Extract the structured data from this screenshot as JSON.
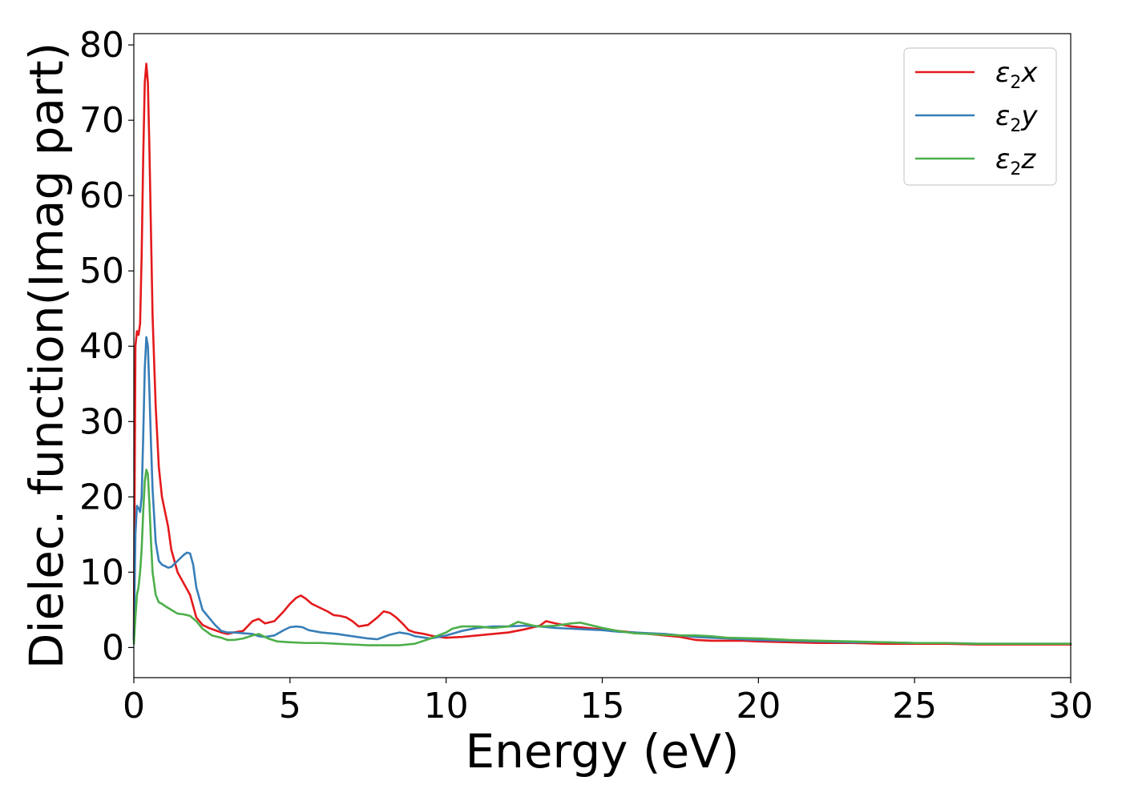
{
  "chart_data": {
    "type": "line",
    "title": "",
    "xlabel": "Energy (eV)",
    "ylabel": "Dielec. function(Imag part)",
    "xlim": [
      0,
      30
    ],
    "ylim": [
      -4,
      81.5
    ],
    "xticks": [
      0,
      5,
      10,
      15,
      20,
      25,
      30
    ],
    "yticks": [
      0,
      10,
      20,
      30,
      40,
      50,
      60,
      70,
      80
    ],
    "grid": false,
    "legend_position": "top-right",
    "series": [
      {
        "name": "ε2x",
        "legend_base": "ε",
        "legend_sub": "2",
        "legend_tail": "x",
        "color": "#e41a1c",
        "x": [
          0,
          0.05,
          0.1,
          0.15,
          0.2,
          0.25,
          0.3,
          0.35,
          0.4,
          0.45,
          0.5,
          0.55,
          0.6,
          0.7,
          0.8,
          0.9,
          1.0,
          1.1,
          1.2,
          1.4,
          1.6,
          1.8,
          2.0,
          2.2,
          2.4,
          2.6,
          2.8,
          3.0,
          3.2,
          3.5,
          3.8,
          4.0,
          4.2,
          4.5,
          4.8,
          5.0,
          5.2,
          5.35,
          5.5,
          5.7,
          6.0,
          6.2,
          6.4,
          6.6,
          6.8,
          7.0,
          7.2,
          7.5,
          7.8,
          8.0,
          8.2,
          8.4,
          8.6,
          8.8,
          9.0,
          9.3,
          9.6,
          10.0,
          10.5,
          11.0,
          11.5,
          12.0,
          12.5,
          13.0,
          13.2,
          13.5,
          14.0,
          14.5,
          15.0,
          15.5,
          16.0,
          16.5,
          17.0,
          17.5,
          18.0,
          18.5,
          19.0,
          19.5,
          20.0,
          21.0,
          22.0,
          23.0,
          24.0,
          25.0,
          26.0,
          27.0,
          28.0,
          29.0,
          30.0
        ],
        "y": [
          1,
          40,
          42,
          41.5,
          43,
          52,
          65,
          75,
          77.5,
          75,
          66,
          55,
          44,
          32,
          24,
          20,
          18,
          16,
          13,
          10,
          8.5,
          7,
          4,
          3,
          2.6,
          2.3,
          2,
          1.8,
          2,
          2.2,
          3.5,
          3.8,
          3.2,
          3.5,
          4.8,
          5.8,
          6.6,
          6.9,
          6.5,
          5.8,
          5.2,
          4.8,
          4.3,
          4.2,
          4.0,
          3.5,
          2.8,
          3.0,
          4.0,
          4.8,
          4.6,
          4.0,
          3.2,
          2.3,
          2.0,
          1.8,
          1.5,
          1.3,
          1.4,
          1.6,
          1.8,
          2.0,
          2.4,
          2.9,
          3.5,
          3.2,
          2.8,
          2.6,
          2.4,
          2.2,
          2.0,
          1.8,
          1.6,
          1.4,
          1.0,
          0.9,
          0.9,
          0.9,
          0.8,
          0.7,
          0.6,
          0.6,
          0.5,
          0.5,
          0.5,
          0.4,
          0.4,
          0.4,
          0.4
        ]
      },
      {
        "name": "ε2y",
        "legend_base": "ε",
        "legend_sub": "2",
        "legend_tail": "y",
        "color": "#377eb8",
        "x": [
          0,
          0.05,
          0.1,
          0.15,
          0.2,
          0.25,
          0.3,
          0.35,
          0.4,
          0.45,
          0.5,
          0.55,
          0.6,
          0.7,
          0.8,
          0.9,
          1.0,
          1.1,
          1.2,
          1.4,
          1.6,
          1.7,
          1.8,
          1.9,
          2.0,
          2.2,
          2.4,
          2.6,
          2.8,
          3.0,
          3.2,
          3.5,
          3.8,
          4.0,
          4.2,
          4.5,
          4.8,
          5.0,
          5.2,
          5.4,
          5.6,
          6.0,
          6.5,
          7.0,
          7.5,
          7.8,
          8.0,
          8.2,
          8.5,
          8.8,
          9.0,
          9.5,
          10.0,
          10.5,
          11.0,
          11.5,
          12.0,
          12.5,
          13.0,
          13.5,
          14.0,
          14.5,
          15.0,
          15.5,
          16.0,
          16.5,
          17.0,
          17.5,
          18.0,
          19.0,
          20.0,
          21.0,
          22.0,
          23.0,
          24.0,
          25.0,
          26.0,
          27.0,
          28.0,
          29.0,
          30.0
        ],
        "y": [
          1,
          15,
          18.8,
          18.5,
          18,
          20,
          28,
          37,
          41.2,
          40,
          34,
          27,
          21,
          14,
          11.5,
          11,
          10.8,
          10.6,
          10.7,
          11.5,
          12.3,
          12.6,
          12.5,
          11,
          8,
          5,
          4,
          3,
          2.2,
          2,
          2,
          1.9,
          1.8,
          1.5,
          1.4,
          1.6,
          2.3,
          2.7,
          2.8,
          2.7,
          2.3,
          2.0,
          1.8,
          1.5,
          1.2,
          1.1,
          1.4,
          1.7,
          2.0,
          1.8,
          1.5,
          1.2,
          1.6,
          2.2,
          2.6,
          2.8,
          2.8,
          2.9,
          2.8,
          2.6,
          2.5,
          2.4,
          2.3,
          2.1,
          2.0,
          1.9,
          1.8,
          1.6,
          1.4,
          1.2,
          1.0,
          0.9,
          0.8,
          0.7,
          0.7,
          0.6,
          0.6,
          0.5,
          0.5,
          0.5,
          0.5
        ]
      },
      {
        "name": "ε2z",
        "legend_base": "ε",
        "legend_sub": "2",
        "legend_tail": "z",
        "color": "#4daf4a",
        "x": [
          0,
          0.05,
          0.1,
          0.15,
          0.2,
          0.25,
          0.3,
          0.35,
          0.4,
          0.45,
          0.5,
          0.55,
          0.6,
          0.7,
          0.8,
          0.9,
          1.0,
          1.2,
          1.4,
          1.6,
          1.8,
          2.0,
          2.2,
          2.5,
          2.8,
          3.0,
          3.2,
          3.5,
          3.8,
          4.0,
          4.3,
          4.6,
          5.0,
          5.5,
          6.0,
          6.5,
          7.0,
          7.5,
          8.0,
          8.5,
          9.0,
          9.5,
          10.0,
          10.2,
          10.5,
          11.0,
          11.5,
          12.0,
          12.3,
          12.5,
          12.8,
          13.0,
          13.5,
          14.0,
          14.3,
          14.6,
          15.0,
          15.5,
          16.0,
          16.5,
          17.0,
          17.5,
          18.0,
          18.5,
          19.0,
          20.0,
          21.0,
          22.0,
          23.0,
          24.0,
          25.0,
          26.0,
          27.0,
          28.0,
          29.0,
          30.0
        ],
        "y": [
          0.5,
          4,
          7,
          8,
          10,
          13,
          18,
          22,
          23.6,
          23,
          19,
          14,
          10,
          7,
          6,
          5.8,
          5.5,
          5,
          4.5,
          4.4,
          4.2,
          3.5,
          2.5,
          1.6,
          1.3,
          1.0,
          1.0,
          1.2,
          1.6,
          1.8,
          1.2,
          0.8,
          0.7,
          0.6,
          0.6,
          0.5,
          0.4,
          0.3,
          0.3,
          0.3,
          0.5,
          1.2,
          2.0,
          2.5,
          2.8,
          2.8,
          2.6,
          2.8,
          3.4,
          3.2,
          2.9,
          2.8,
          2.9,
          3.2,
          3.3,
          3.0,
          2.6,
          2.2,
          1.9,
          1.8,
          1.7,
          1.6,
          1.6,
          1.5,
          1.3,
          1.2,
          1.0,
          0.9,
          0.8,
          0.7,
          0.6,
          0.6,
          0.5,
          0.5,
          0.5,
          0.5
        ]
      }
    ]
  }
}
